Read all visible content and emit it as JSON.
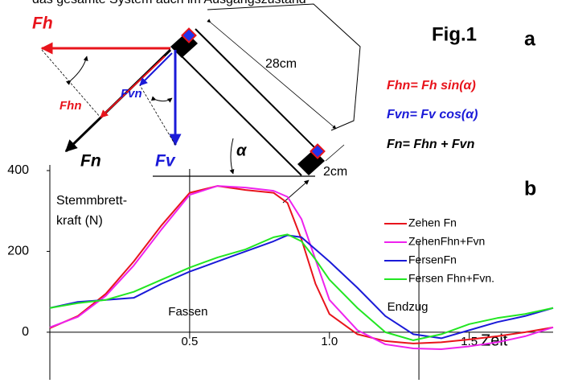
{
  "page_header": "das gesamte System auch im Ausgangszustand",
  "diagram": {
    "figure_label": "Fig.1",
    "panel_a": "a",
    "panel_b": "b",
    "forces": {
      "fh": "Fh",
      "fhn": "Fhn",
      "fvn": "Fvn",
      "fn": "Fn",
      "fv": "Fv"
    },
    "angle": "α",
    "board_length": "28cm",
    "block_size": "2cm",
    "formulas": [
      "Fhn= Fh sin(α)",
      "Fvn= Fv cos(α)",
      "Fn= Fhn + Fvn"
    ]
  },
  "chart_data": {
    "type": "line",
    "y_label_lines": [
      "Stemmbrett-",
      "kraft (N)"
    ],
    "x_label": "Zeit",
    "x": [
      0,
      0.1,
      0.2,
      0.3,
      0.4,
      0.5,
      0.6,
      0.7,
      0.8,
      0.85,
      0.9,
      0.95,
      1.0,
      1.1,
      1.2,
      1.3,
      1.4,
      1.5,
      1.6,
      1.7,
      1.8
    ],
    "series": [
      {
        "name": "Zehen Fn",
        "color": "#e8141c",
        "values": [
          10,
          40,
          95,
          175,
          265,
          345,
          362,
          352,
          345,
          320,
          230,
          120,
          45,
          -5,
          -22,
          -28,
          -25,
          -18,
          -10,
          0,
          12
        ]
      },
      {
        "name": "ZehenFhn+Fvn",
        "color": "#ee22ee",
        "values": [
          12,
          38,
          90,
          165,
          255,
          340,
          362,
          358,
          350,
          335,
          280,
          180,
          80,
          5,
          -30,
          -40,
          -42,
          -35,
          -25,
          -10,
          12
        ]
      },
      {
        "name": "FersenFn",
        "color": "#1a1ad8",
        "values": [
          60,
          75,
          80,
          85,
          120,
          150,
          175,
          200,
          225,
          240,
          235,
          205,
          175,
          110,
          40,
          -5,
          -15,
          5,
          25,
          40,
          60
        ]
      },
      {
        "name": "Fersen Fhn+Fvn.",
        "color": "#22e622",
        "values": [
          60,
          72,
          80,
          100,
          130,
          160,
          185,
          205,
          235,
          242,
          225,
          180,
          130,
          60,
          0,
          -20,
          -5,
          20,
          35,
          45,
          60
        ]
      }
    ],
    "xlim": [
      0,
      1.8
    ],
    "ylim": [
      -60,
      400
    ],
    "xticks": [
      0.5,
      {
        "value": 1,
        "label": "1.0"
      },
      1.5
    ],
    "yticks": [
      0,
      200,
      400
    ],
    "annotations": [
      {
        "text": "Fassen",
        "x": 0.5
      },
      {
        "text": "Endzug",
        "x": 1.32
      }
    ],
    "legend": "right"
  }
}
